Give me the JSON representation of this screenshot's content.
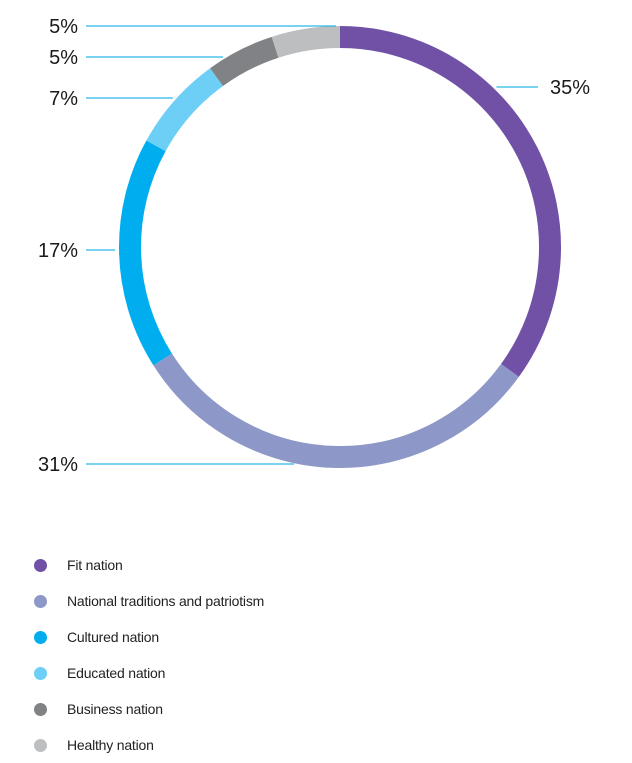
{
  "chart_data": {
    "type": "pie",
    "variant": "donut",
    "categories": [
      "Fit nation",
      "National traditions and patriotism",
      "Cultured nation",
      "Educated nation",
      "Business nation",
      "Healthy nation"
    ],
    "values": [
      35,
      31,
      17,
      7,
      5,
      5
    ],
    "value_labels": [
      "35%",
      "31%",
      "17%",
      "7%",
      "5%",
      "5%"
    ],
    "colors": [
      "#7151a6",
      "#8e98c8",
      "#00aeef",
      "#6dcff6",
      "#808285",
      "#bcbec0"
    ],
    "leader_color": "#29b6e8",
    "legend_placement": "bottom-left"
  }
}
